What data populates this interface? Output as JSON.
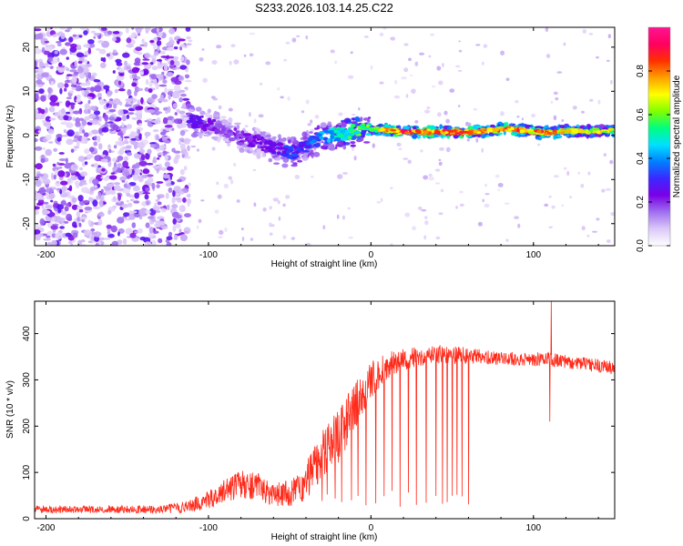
{
  "chart_data": [
    {
      "type": "heatmap",
      "title": "S233.2026.103.14.25.C22",
      "xlabel": "Height of straight line (km)",
      "ylabel": "Frequency (Hz)",
      "xlim": [
        -207,
        150
      ],
      "ylim": [
        -25,
        24.5
      ],
      "x_ticks": [
        -200,
        -100,
        0,
        100
      ],
      "x_tick_labels": [
        "-200",
        "-100",
        "0",
        "100"
      ],
      "y_ticks": [
        -20,
        -10,
        0,
        10,
        20
      ],
      "y_tick_labels": [
        "-20",
        "-10",
        "0",
        "10",
        "20"
      ],
      "colorbar": {
        "label": "Normalized spectral amplitude",
        "range": [
          0,
          1
        ],
        "ticks": [
          0.0,
          0.2,
          0.4,
          0.6,
          0.8
        ],
        "tick_labels": [
          "0.0",
          "0.2",
          "0.4",
          "0.6",
          "0.8"
        ],
        "colors": [
          "#ffffff",
          "#dcc8f8",
          "#a070f0",
          "#7a00e6",
          "#3c28ff",
          "#0080ff",
          "#00e0ff",
          "#00ff80",
          "#80ff00",
          "#ffff00",
          "#ffa000",
          "#ff3000",
          "#ff0060",
          "#ff1493"
        ]
      },
      "noise_region_x": [
        -207,
        -112
      ],
      "ridge": {
        "x": [
          -112,
          -100,
          -90,
          -80,
          -70,
          -60,
          -50,
          -45,
          -40,
          -35,
          -30,
          -25,
          -20,
          -15,
          -10,
          -5,
          0,
          10,
          20,
          30,
          40,
          50,
          60,
          70,
          80,
          90,
          100,
          110,
          120,
          130,
          140,
          150
        ],
        "freq": [
          3.5,
          2.5,
          1,
          -0.5,
          -1.5,
          -3,
          -4,
          -3.5,
          -2.5,
          -1.5,
          -0.5,
          0,
          0.3,
          0.6,
          0.9,
          1.2,
          1.5,
          1.1,
          0.7,
          0.8,
          0.8,
          0.8,
          0.8,
          1.0,
          1.4,
          1.4,
          0.8,
          0.6,
          1.0,
          1.0,
          1.0,
          1.0
        ],
        "amplitude": [
          0.3,
          0.25,
          0.2,
          0.25,
          0.25,
          0.3,
          0.35,
          0.35,
          0.35,
          0.45,
          0.45,
          0.5,
          0.55,
          0.6,
          0.65,
          0.65,
          0.65,
          0.9,
          0.95,
          0.95,
          0.95,
          0.95,
          0.95,
          0.9,
          0.9,
          0.92,
          0.9,
          0.9,
          0.8,
          0.75,
          0.75,
          0.75
        ]
      }
    },
    {
      "type": "line",
      "xlabel": "Height of straight line (km)",
      "ylabel": "SNR (10 * v/v)",
      "xlim": [
        -207,
        150
      ],
      "ylim": [
        0,
        470
      ],
      "x_ticks": [
        -200,
        -100,
        0,
        100
      ],
      "x_tick_labels": [
        "-200",
        "-100",
        "0",
        "100"
      ],
      "y_ticks": [
        0,
        100,
        200,
        300,
        400
      ],
      "y_tick_labels": [
        "0",
        "100",
        "200",
        "300",
        "400"
      ],
      "color": "#ff2a1a",
      "envelope": {
        "x": [
          -207,
          -160,
          -130,
          -115,
          -100,
          -90,
          -80,
          -70,
          -60,
          -50,
          -40,
          -35,
          -30,
          -25,
          -20,
          -15,
          -10,
          -5,
          0,
          10,
          20,
          30,
          40,
          50,
          60,
          70,
          80,
          90,
          100,
          110,
          120,
          130,
          140,
          150
        ],
        "mean": [
          20,
          20,
          20,
          25,
          40,
          60,
          75,
          70,
          50,
          55,
          80,
          110,
          150,
          160,
          180,
          210,
          240,
          270,
          300,
          330,
          345,
          350,
          355,
          355,
          352,
          350,
          345,
          345,
          345,
          345,
          340,
          335,
          330,
          325
        ],
        "spread": [
          8,
          8,
          9,
          12,
          20,
          25,
          30,
          30,
          25,
          30,
          40,
          50,
          60,
          60,
          60,
          55,
          55,
          45,
          40,
          30,
          25,
          20,
          20,
          20,
          18,
          15,
          15,
          15,
          15,
          15,
          15,
          15,
          15,
          15
        ]
      },
      "dropouts": [
        -30,
        -27,
        -22,
        -18,
        -12,
        -8,
        -3,
        3,
        8,
        13,
        18,
        23,
        28,
        34,
        40,
        44,
        47,
        50,
        53,
        56,
        60
      ],
      "spikes": [
        {
          "x": 111,
          "y": 470
        },
        {
          "x": 110,
          "y": 210
        }
      ]
    }
  ]
}
